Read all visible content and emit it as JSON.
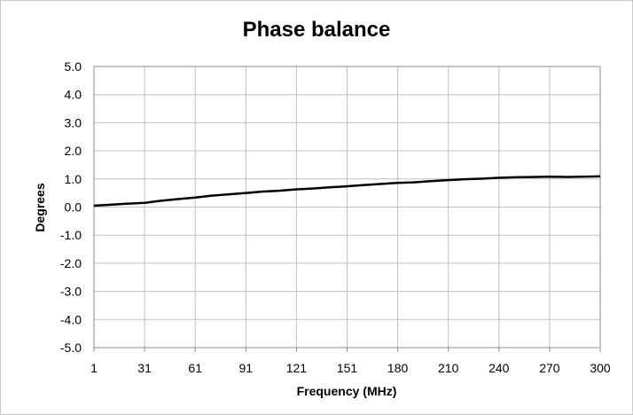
{
  "chart_data": {
    "type": "line",
    "title": "Phase balance",
    "xlabel": "Frequency (MHz)",
    "ylabel": "Degrees",
    "x_tick_labels": [
      "1",
      "31",
      "61",
      "91",
      "121",
      "151",
      "180",
      "210",
      "240",
      "270",
      "300"
    ],
    "y_tick_labels": [
      "5.0",
      "4.0",
      "3.0",
      "2.0",
      "1.0",
      "0.0",
      "-1.0",
      "-2.0",
      "-3.0",
      "-4.0",
      "-5.0"
    ],
    "xlim": [
      1,
      300
    ],
    "ylim": [
      -5,
      5
    ],
    "grid": true,
    "legend": "none",
    "line_color": "#000000",
    "series": [
      {
        "x": [
          1,
          10,
          20,
          31,
          40,
          50,
          61,
          70,
          80,
          91,
          100,
          110,
          121,
          130,
          140,
          151,
          160,
          170,
          180,
          190,
          200,
          210,
          220,
          230,
          240,
          250,
          260,
          270,
          280,
          290,
          300
        ],
        "values": [
          0.05,
          0.08,
          0.12,
          0.15,
          0.22,
          0.28,
          0.34,
          0.4,
          0.45,
          0.5,
          0.55,
          0.58,
          0.63,
          0.66,
          0.7,
          0.74,
          0.78,
          0.82,
          0.86,
          0.88,
          0.92,
          0.96,
          0.99,
          1.01,
          1.04,
          1.06,
          1.07,
          1.08,
          1.07,
          1.08,
          1.09
        ]
      }
    ]
  }
}
